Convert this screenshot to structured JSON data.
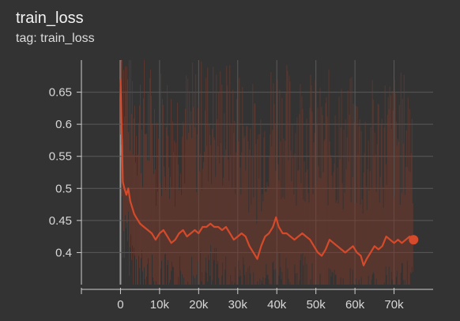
{
  "header": {
    "title": "train_loss",
    "subtitle": "tag: train_loss"
  },
  "colors": {
    "background": "#333333",
    "grid": "#5a5a5a",
    "axis": "#cfcfcf",
    "zero_line": "#9a9a9a",
    "smoothed_line": "#d44a2a",
    "raw_line": "#7a3a2c"
  },
  "chart_data": {
    "type": "line",
    "title": "train_loss",
    "xlabel": "",
    "ylabel": "",
    "xlim": [
      -10000,
      80000
    ],
    "ylim": [
      0.35,
      0.7
    ],
    "x_ticks": [
      0,
      10000,
      20000,
      30000,
      40000,
      50000,
      60000,
      70000
    ],
    "x_tick_labels": [
      "0",
      "10k",
      "20k",
      "30k",
      "40k",
      "50k",
      "60k",
      "70k"
    ],
    "y_ticks": [
      0.4,
      0.45,
      0.5,
      0.55,
      0.6,
      0.65
    ],
    "y_tick_labels": [
      "0.4",
      "0.45",
      "0.5",
      "0.55",
      "0.6",
      "0.65"
    ],
    "grid": true,
    "series": [
      {
        "style": "smoothed",
        "x": [
          0,
          300,
          600,
          1000,
          1500,
          2000,
          2500,
          3000,
          3500,
          4000,
          5000,
          6000,
          7000,
          8000,
          9000,
          10000,
          11000,
          12000,
          13000,
          14000,
          15000,
          16000,
          17000,
          18000,
          19000,
          20000,
          21000,
          22000,
          23000,
          24000,
          25000,
          26000,
          27000,
          28000,
          29000,
          30000,
          31000,
          32000,
          33000,
          34000,
          35000,
          36000,
          37000,
          38000,
          39000,
          39800,
          40500,
          41500,
          42500,
          43500,
          44500,
          45500,
          46500,
          47500,
          48500,
          49500,
          50500,
          51500,
          52500,
          53500,
          54500,
          55500,
          56500,
          57500,
          58500,
          59500,
          60500,
          61500,
          62200,
          63000,
          64000,
          65000,
          66000,
          67000,
          68000,
          69000,
          70000,
          71000,
          72000,
          73000,
          74000,
          75000
        ],
        "values": [
          0.67,
          0.6,
          0.51,
          0.5,
          0.49,
          0.5,
          0.48,
          0.47,
          0.46,
          0.455,
          0.445,
          0.44,
          0.435,
          0.43,
          0.42,
          0.43,
          0.435,
          0.425,
          0.415,
          0.42,
          0.43,
          0.435,
          0.425,
          0.43,
          0.435,
          0.43,
          0.44,
          0.44,
          0.445,
          0.44,
          0.44,
          0.435,
          0.44,
          0.43,
          0.42,
          0.425,
          0.43,
          0.425,
          0.41,
          0.4,
          0.39,
          0.41,
          0.425,
          0.43,
          0.44,
          0.455,
          0.44,
          0.43,
          0.43,
          0.425,
          0.42,
          0.425,
          0.43,
          0.425,
          0.42,
          0.41,
          0.4,
          0.395,
          0.405,
          0.42,
          0.415,
          0.41,
          0.405,
          0.4,
          0.405,
          0.41,
          0.4,
          0.395,
          0.38,
          0.39,
          0.4,
          0.41,
          0.405,
          0.41,
          0.425,
          0.42,
          0.415,
          0.42,
          0.415,
          0.42,
          0.425,
          0.42
        ]
      }
    ],
    "last_point": {
      "x": 75000,
      "value": 0.42
    }
  }
}
